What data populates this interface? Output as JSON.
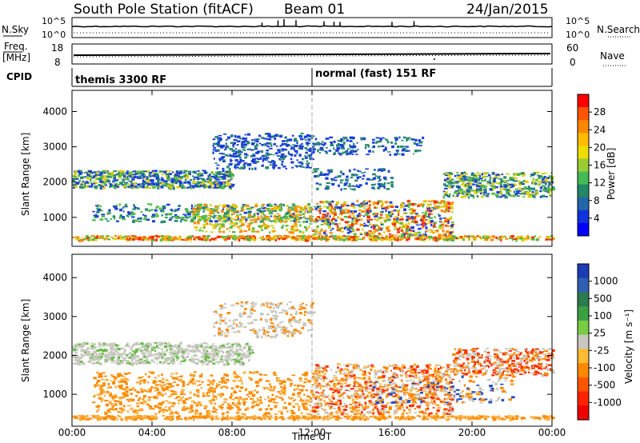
{
  "header": {
    "station": "South Pole Station (fitACF)",
    "beam": "Beam 01",
    "date": "24/Jan/2015"
  },
  "strip_labels": {
    "nsky": "N.Sky",
    "nsky_top": "10^5",
    "nsky_bottom": "10^0",
    "nsearch": "N.Search",
    "nsearch_top": "10^5",
    "nsearch_bottom": "10^0",
    "freq_line1": "Freq.",
    "freq_line2": "[MHz]",
    "freq_top": "18",
    "freq_bottom": "8",
    "nave": "Nave",
    "nave_top": "60",
    "nave_bottom": "0",
    "cpid": "CPID",
    "cpid_left": "themis 3300 RF",
    "cpid_right": "normal (fast) 151 RF"
  },
  "chart_data": [
    {
      "type": "heatmap",
      "name": "Power",
      "ylabel": "Slant Range [km]",
      "ylim": [
        180,
        4600
      ],
      "yticks": [
        "4000",
        "3000",
        "2000",
        "1000"
      ],
      "colorbar_label": "Power [dB]",
      "colorbar_ticks": [
        "28",
        "24",
        "20",
        "16",
        "12",
        "8",
        "4"
      ],
      "colorbar_colors": [
        "#ff0000",
        "#ff5500",
        "#ff8800",
        "#ffbb00",
        "#eedd00",
        "#99cc33",
        "#44bb55",
        "#228866",
        "#2266aa",
        "#1133dd",
        "#0000ff"
      ]
    },
    {
      "type": "heatmap",
      "name": "Velocity",
      "ylabel": "Slant Range [km]",
      "ylim": [
        180,
        4600
      ],
      "yticks": [
        "4000",
        "3000",
        "2000",
        "1000"
      ],
      "colorbar_label": "Velocity [m s⁻¹]",
      "colorbar_ticks": [
        "1000",
        "500",
        "100",
        "25",
        "-25",
        "-100",
        "-500",
        "-1000"
      ],
      "colorbar_colors": [
        "#1a3cb5",
        "#2f5fb0",
        "#2c7a50",
        "#3aa040",
        "#77cc44",
        "#c8c8c0",
        "#ffbb33",
        "#ff8800",
        "#ff5500",
        "#ff2200",
        "#ee0000"
      ]
    }
  ],
  "xaxis": {
    "label": "Time UT",
    "ticks": [
      "00:00",
      "04:00",
      "08:00",
      "12:00",
      "16:00",
      "20:00",
      "00:00"
    ]
  }
}
